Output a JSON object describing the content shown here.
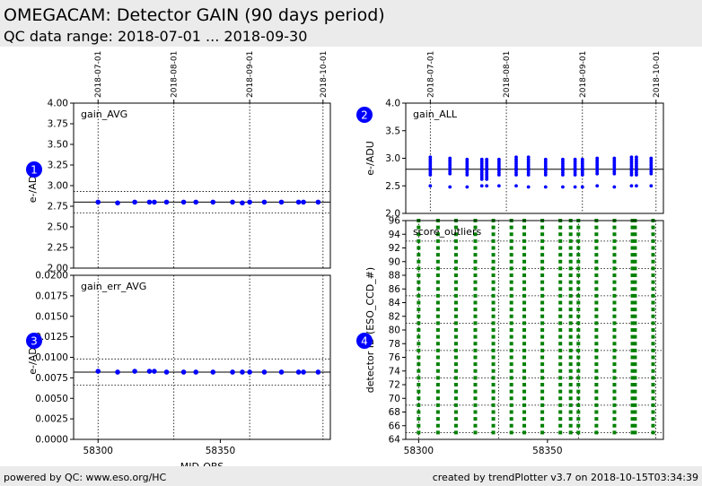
{
  "header": {
    "title": "OMEGACAM: Detector GAIN (90 days period)",
    "subtitle": "QC data range: 2018-07-01 ... 2018-09-30"
  },
  "footer": {
    "left": "powered by QC: www.eso.org/HC",
    "right": "created by trendPlotter v3.7 on 2018-10-15T03:34:39"
  },
  "colors": {
    "data_blue": "#0000ff",
    "data_green": "#008000",
    "badge": "#0000ff",
    "header_bg": "#ebebeb"
  },
  "chart_data": [
    {
      "id": 1,
      "type": "scatter",
      "label": "gain_AVG",
      "ylabel": "e-/ADU",
      "ylim": [
        2.0,
        4.0
      ],
      "xlim": [
        58290,
        58395
      ],
      "yticks": [
        "4.00",
        "3.75",
        "3.50",
        "3.25",
        "3.00",
        "2.75",
        "2.50",
        "2.25",
        "2.00"
      ],
      "date_ticks": [
        {
          "mjd": 58300,
          "label": "2018-07-01"
        },
        {
          "mjd": 58331,
          "label": "2018-08-01"
        },
        {
          "mjd": 58362,
          "label": "2018-09-01"
        },
        {
          "mjd": 58392,
          "label": "2018-10-01"
        }
      ],
      "hlines": {
        "solid": [
          2.8
        ],
        "dotted": [
          2.93,
          2.67
        ]
      },
      "x": [
        58300,
        58308,
        58315,
        58321,
        58323,
        58328,
        58335,
        58340,
        58347,
        58355,
        58359,
        58362,
        58368,
        58375,
        58382,
        58384,
        58390
      ],
      "y": [
        2.8,
        2.79,
        2.8,
        2.8,
        2.8,
        2.8,
        2.8,
        2.8,
        2.8,
        2.8,
        2.79,
        2.8,
        2.8,
        2.8,
        2.8,
        2.8,
        2.8
      ]
    },
    {
      "id": 2,
      "type": "scatter",
      "label": "gain_ALL",
      "ylabel": "e-/ADU",
      "ylim": [
        2.0,
        4.0
      ],
      "xlim": [
        58290,
        58395
      ],
      "yticks": [
        "4.0",
        "3.5",
        "3.0",
        "2.5",
        "2.0"
      ],
      "date_ticks": [
        {
          "mjd": 58300,
          "label": "2018-07-01"
        },
        {
          "mjd": 58331,
          "label": "2018-08-01"
        },
        {
          "mjd": 58362,
          "label": "2018-09-01"
        },
        {
          "mjd": 58392,
          "label": "2018-10-01"
        }
      ],
      "hlines": {
        "solid": [
          2.8
        ],
        "dotted": []
      },
      "x": [
        58300,
        58308,
        58315,
        58321,
        58323,
        58328,
        58335,
        58340,
        58347,
        58354,
        58359,
        58362,
        58368,
        58375,
        58382,
        58384,
        58390
      ],
      "ymin": [
        2.7,
        2.72,
        2.7,
        2.62,
        2.62,
        2.7,
        2.7,
        2.7,
        2.7,
        2.7,
        2.7,
        2.7,
        2.72,
        2.72,
        2.7,
        2.7,
        2.72
      ],
      "ymax": [
        3.02,
        3.0,
        3.01,
        3.0,
        3.0,
        3.01,
        3.03,
        3.02,
        3.01,
        3.01,
        3.01,
        3.01,
        3.02,
        3.01,
        3.03,
        3.02,
        3.03
      ],
      "outliers": [
        2.5,
        2.48,
        2.48,
        2.5,
        2.5,
        2.5,
        2.5,
        2.48,
        2.48,
        2.48,
        2.48,
        2.48,
        2.5,
        2.48,
        2.5,
        2.5,
        2.5
      ]
    },
    {
      "id": 3,
      "type": "scatter",
      "label": "gain_err_AVG",
      "ylabel": "e-/ADU",
      "xlabel": "MJD-OBS",
      "ylim": [
        0.0,
        0.02
      ],
      "xlim": [
        58290,
        58395
      ],
      "yticks": [
        "0.0200",
        "0.0175",
        "0.0150",
        "0.0125",
        "0.0100",
        "0.0075",
        "0.0050",
        "0.0025",
        "0.0000"
      ],
      "xticks": [
        {
          "mjd": 58300,
          "label": "58300"
        },
        {
          "mjd": 58350,
          "label": "58350"
        }
      ],
      "date_mjd": [
        58300,
        58331,
        58362,
        58392
      ],
      "hlines": {
        "solid": [
          0.0082
        ],
        "dotted": [
          0.0098,
          0.0066
        ]
      },
      "x": [
        58300,
        58308,
        58315,
        58321,
        58323,
        58328,
        58335,
        58340,
        58347,
        58355,
        58359,
        58362,
        58368,
        58375,
        58382,
        58384,
        58390
      ],
      "y": [
        0.0083,
        0.0082,
        0.0083,
        0.0083,
        0.0083,
        0.0082,
        0.0082,
        0.0082,
        0.0082,
        0.0082,
        0.0082,
        0.0082,
        0.0082,
        0.0082,
        0.0082,
        0.0082,
        0.0082
      ]
    },
    {
      "id": 4,
      "type": "scatter",
      "label": "score_outliers",
      "ylabel": "detector ID (ESO_CCD_#)",
      "ylim": [
        64,
        96
      ],
      "xlim": [
        58295,
        58395
      ],
      "yticks": [
        "96",
        "94",
        "92",
        "90",
        "88",
        "86",
        "84",
        "82",
        "80",
        "78",
        "76",
        "74",
        "72",
        "70",
        "68",
        "66",
        "64"
      ],
      "xticks": [
        {
          "mjd": 58300,
          "label": "58300"
        },
        {
          "mjd": 58350,
          "label": "58350"
        }
      ],
      "date_mjd": [
        58300,
        58331,
        58362,
        58392
      ],
      "hgrid": [
        93,
        89,
        85,
        81,
        77,
        73,
        69,
        65
      ],
      "x": [
        58300,
        58307.5,
        58314.5,
        58322,
        58329,
        58336,
        58341,
        58348,
        58355,
        58359,
        58362,
        58369,
        58376,
        58383,
        58384,
        58391
      ],
      "detector_range": [
        65,
        96
      ]
    }
  ]
}
